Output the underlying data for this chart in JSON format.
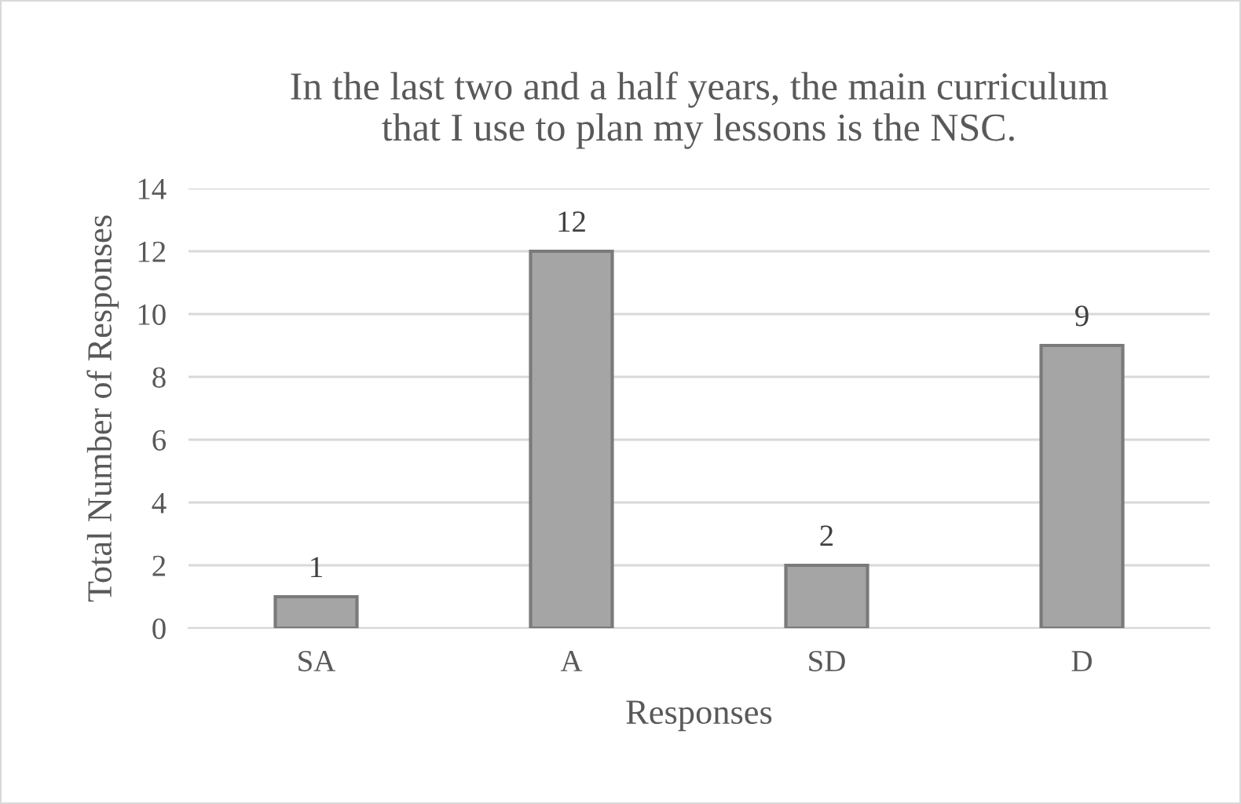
{
  "chart_data": {
    "type": "bar",
    "title": "In the last two and a half years, the main curriculum\nthat I use to plan my lessons is the NSC.",
    "xlabel": "Responses",
    "ylabel": "Total Number of Responses",
    "categories": [
      "SA",
      "A",
      "SD",
      "D"
    ],
    "values": [
      1,
      12,
      2,
      9
    ],
    "color": "#a5a5a5",
    "ylim": [
      0,
      14
    ],
    "yticks": [
      0,
      2,
      4,
      6,
      8,
      10,
      12,
      14
    ],
    "grid": "y",
    "data_labels": true
  }
}
